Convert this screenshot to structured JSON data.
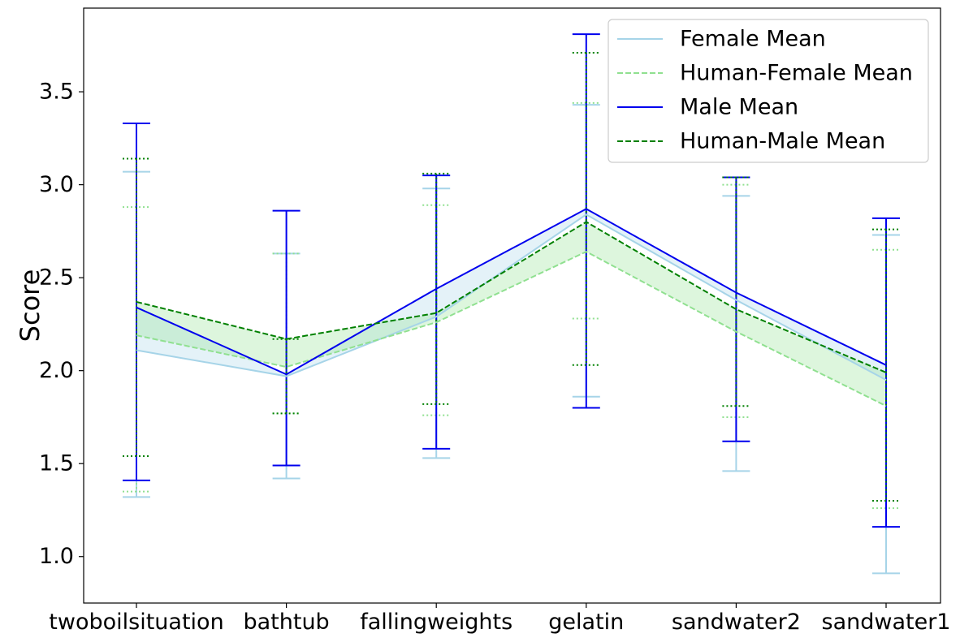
{
  "chart_data": {
    "type": "line",
    "title": "",
    "xlabel": "",
    "ylabel": "Score",
    "ylim": [
      0.75,
      3.95
    ],
    "yticks": [
      "1.0",
      "1.5",
      "2.0",
      "2.5",
      "3.0",
      "3.5"
    ],
    "categories": [
      "twoboilsituation",
      "bathtub",
      "fallingweights",
      "gelatin",
      "sandwater2",
      "sandwater1"
    ],
    "legend_position": "top-right",
    "grid": false,
    "series": [
      {
        "key": "female",
        "name": "Female Mean",
        "color": "#a6d4e8",
        "style": "solid",
        "errorbar_style": "solid",
        "values": [
          2.11,
          1.97,
          2.29,
          2.84,
          2.38,
          1.95
        ],
        "err_low": [
          1.32,
          1.42,
          1.53,
          1.86,
          1.46,
          0.91
        ],
        "err_high": [
          3.07,
          2.63,
          2.98,
          3.43,
          2.94,
          2.73
        ]
      },
      {
        "key": "human_female",
        "name": "Human-Female Mean",
        "color": "#90e090",
        "style": "dashed",
        "errorbar_style": "dotted",
        "values": [
          2.19,
          2.02,
          2.26,
          2.64,
          2.21,
          1.81
        ],
        "err_low": [
          1.35,
          1.77,
          1.76,
          2.28,
          1.75,
          1.26
        ],
        "err_high": [
          2.88,
          2.63,
          2.89,
          3.44,
          3.0,
          2.65
        ]
      },
      {
        "key": "male",
        "name": "Male Mean",
        "color": "#0000ee",
        "style": "solid",
        "errorbar_style": "solid",
        "values": [
          2.34,
          1.98,
          2.44,
          2.87,
          2.42,
          2.03
        ],
        "err_low": [
          1.41,
          1.49,
          1.58,
          1.8,
          1.62,
          1.16
        ],
        "err_high": [
          3.33,
          2.86,
          3.05,
          3.81,
          3.04,
          2.82
        ]
      },
      {
        "key": "human_male",
        "name": "Human-Male Mean",
        "color": "#008000",
        "style": "dashed",
        "errorbar_style": "dotted",
        "values": [
          2.37,
          2.17,
          2.31,
          2.8,
          2.33,
          1.99
        ],
        "err_low": [
          1.54,
          1.77,
          1.82,
          2.03,
          1.81,
          1.3
        ],
        "err_high": [
          3.14,
          2.17,
          3.06,
          3.71,
          3.04,
          2.76
        ]
      }
    ],
    "bands": [
      {
        "between": [
          "female",
          "male"
        ],
        "color": "#a6d4e8",
        "opacity": 0.3
      },
      {
        "between": [
          "human_female",
          "human_male"
        ],
        "color": "#90e090",
        "opacity": 0.3
      }
    ]
  }
}
